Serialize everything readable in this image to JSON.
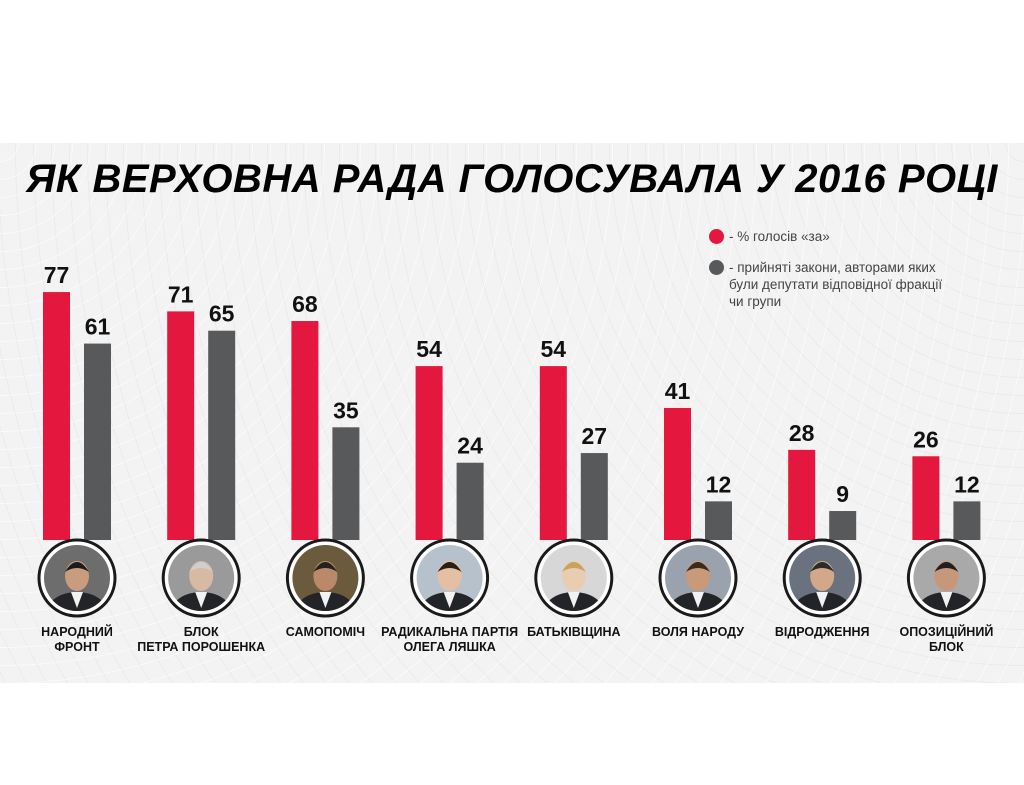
{
  "chart_data": {
    "type": "bar",
    "title": "ЯК ВЕРХОВНА РАДА ГОЛОСУВАЛА У 2016 РОЦІ",
    "categories": [
      "НАРОДНИЙ\nФРОНТ",
      "БЛОК\nПЕТРА ПОРОШЕНКА",
      "САМОПОМІЧ",
      "РАДИКАЛЬНА ПАРТІЯ\nОЛЕГА ЛЯШКА",
      "БАТЬКІВЩИНА",
      "ВОЛЯ НАРОДУ",
      "ВІДРОДЖЕННЯ",
      "ОПОЗИЦІЙНИЙ\nБЛОК"
    ],
    "series": [
      {
        "name": "- % голосів «за»",
        "color": "#e4173e",
        "values": [
          77,
          71,
          68,
          54,
          54,
          41,
          28,
          26
        ]
      },
      {
        "name": "- прийняті закони, авторами яких\nбули депутати відповідної фракції\nчи групи",
        "color": "#58595b",
        "values": [
          61,
          65,
          35,
          24,
          27,
          12,
          9,
          12
        ]
      }
    ],
    "legend_position": "top-right",
    "ylim": [
      0,
      100
    ],
    "grid": false
  },
  "colors": {
    "red": "#e4173e",
    "gray": "#58595b",
    "ring": "#1a1a1a"
  },
  "icons": [
    "person-photo-icon"
  ]
}
